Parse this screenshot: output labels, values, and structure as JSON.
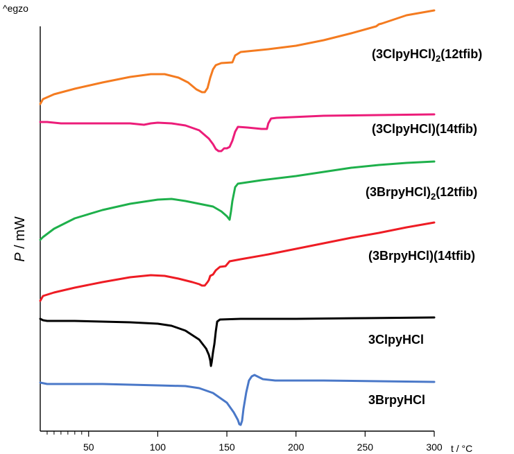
{
  "chart_data": {
    "type": "line",
    "top_note": "^egzo",
    "ylabel_italic": "P",
    "ylabel_rest": " / mW",
    "xlabel": "t / °C",
    "xlim": [
      15,
      300
    ],
    "xticks": [
      50,
      100,
      150,
      200,
      250,
      300
    ],
    "minor_xticks": [
      20,
      25,
      30,
      35,
      40,
      45
    ],
    "series": [
      {
        "name_parts": [
          "(3ClpyHCl)",
          "2",
          "(12tfib)"
        ],
        "color": "#f47b20",
        "points": [
          [
            15,
            150
          ],
          [
            17,
            143
          ],
          [
            25,
            136
          ],
          [
            40,
            128
          ],
          [
            60,
            119
          ],
          [
            80,
            111
          ],
          [
            95,
            107
          ],
          [
            105,
            107
          ],
          [
            115,
            112
          ],
          [
            122,
            119
          ],
          [
            128,
            129
          ],
          [
            132,
            133
          ],
          [
            134,
            133
          ],
          [
            136,
            127
          ],
          [
            138,
            112
          ],
          [
            140,
            100
          ],
          [
            142,
            94
          ],
          [
            146,
            91
          ],
          [
            154,
            90
          ],
          [
            156,
            80
          ],
          [
            160,
            75
          ],
          [
            180,
            71
          ],
          [
            200,
            66
          ],
          [
            220,
            58
          ],
          [
            240,
            48
          ],
          [
            258,
            38
          ],
          [
            260,
            35
          ],
          [
            262,
            34
          ],
          [
            280,
            22
          ],
          [
            300,
            15
          ]
        ]
      },
      {
        "name_parts": [
          "(3ClpyHCl)(14tfib)"
        ],
        "color": "#ec1c79",
        "points": [
          [
            15,
            176
          ],
          [
            20,
            176
          ],
          [
            30,
            178
          ],
          [
            50,
            178
          ],
          [
            80,
            178
          ],
          [
            90,
            180
          ],
          [
            95,
            178
          ],
          [
            100,
            177
          ],
          [
            110,
            178
          ],
          [
            120,
            181
          ],
          [
            130,
            188
          ],
          [
            137,
            200
          ],
          [
            140,
            208
          ],
          [
            142,
            215
          ],
          [
            144,
            218
          ],
          [
            146,
            218
          ],
          [
            148,
            214
          ],
          [
            150,
            214
          ],
          [
            152,
            212
          ],
          [
            154,
            203
          ],
          [
            156,
            190
          ],
          [
            158,
            183
          ],
          [
            165,
            184
          ],
          [
            175,
            186
          ],
          [
            179,
            186
          ],
          [
            180,
            178
          ],
          [
            182,
            171
          ],
          [
            186,
            170
          ],
          [
            220,
            167
          ],
          [
            260,
            166
          ],
          [
            300,
            165
          ]
        ]
      },
      {
        "name_parts": [
          "(3BrpyHCl)",
          "2",
          "(12tfib)"
        ],
        "color": "#1eb04b",
        "points": [
          [
            15,
            346
          ],
          [
            17,
            342
          ],
          [
            25,
            330
          ],
          [
            40,
            315
          ],
          [
            60,
            303
          ],
          [
            80,
            294
          ],
          [
            100,
            288
          ],
          [
            110,
            287
          ],
          [
            120,
            290
          ],
          [
            130,
            294
          ],
          [
            140,
            298
          ],
          [
            146,
            305
          ],
          [
            150,
            312
          ],
          [
            152,
            317
          ],
          [
            153,
            305
          ],
          [
            154,
            290
          ],
          [
            156,
            270
          ],
          [
            158,
            265
          ],
          [
            175,
            260
          ],
          [
            200,
            254
          ],
          [
            220,
            248
          ],
          [
            240,
            242
          ],
          [
            260,
            238
          ],
          [
            280,
            235
          ],
          [
            300,
            233
          ]
        ]
      },
      {
        "name_parts": [
          "(3BrpyHCl)(14tfib)"
        ],
        "color": "#ee1c24",
        "points": [
          [
            15,
            434
          ],
          [
            17,
            427
          ],
          [
            25,
            422
          ],
          [
            40,
            415
          ],
          [
            60,
            407
          ],
          [
            80,
            400
          ],
          [
            95,
            397
          ],
          [
            105,
            398
          ],
          [
            115,
            402
          ],
          [
            125,
            407
          ],
          [
            130,
            410
          ],
          [
            132,
            412
          ],
          [
            134,
            412
          ],
          [
            136,
            407
          ],
          [
            137,
            404
          ],
          [
            138,
            398
          ],
          [
            140,
            396
          ],
          [
            142,
            390
          ],
          [
            145,
            385
          ],
          [
            149,
            384
          ],
          [
            152,
            377
          ],
          [
            160,
            374
          ],
          [
            180,
            367
          ],
          [
            200,
            359
          ],
          [
            220,
            351
          ],
          [
            240,
            343
          ],
          [
            260,
            336
          ],
          [
            280,
            328
          ],
          [
            300,
            321
          ]
        ]
      },
      {
        "name_parts": [
          "3ClpyHCl"
        ],
        "color": "#000000",
        "points": [
          [
            15,
            460
          ],
          [
            17,
            462
          ],
          [
            20,
            463
          ],
          [
            40,
            463
          ],
          [
            60,
            464
          ],
          [
            80,
            465
          ],
          [
            100,
            467
          ],
          [
            110,
            470
          ],
          [
            120,
            477
          ],
          [
            130,
            490
          ],
          [
            135,
            503
          ],
          [
            137,
            512
          ],
          [
            138,
            520
          ],
          [
            138.5,
            528
          ],
          [
            139,
            523
          ],
          [
            140,
            508
          ],
          [
            141,
            496
          ],
          [
            142,
            478
          ],
          [
            143,
            464
          ],
          [
            145,
            461
          ],
          [
            160,
            460
          ],
          [
            200,
            460
          ],
          [
            250,
            459
          ],
          [
            300,
            458
          ]
        ]
      },
      {
        "name_parts": [
          "3BrpyHCl"
        ],
        "color": "#4a78c8",
        "points": [
          [
            15,
            552
          ],
          [
            20,
            554
          ],
          [
            40,
            554
          ],
          [
            60,
            554
          ],
          [
            80,
            555
          ],
          [
            100,
            556
          ],
          [
            120,
            557
          ],
          [
            130,
            560
          ],
          [
            140,
            567
          ],
          [
            150,
            581
          ],
          [
            155,
            595
          ],
          [
            158,
            606
          ],
          [
            159,
            612
          ],
          [
            160,
            613
          ],
          [
            161,
            607
          ],
          [
            162,
            590
          ],
          [
            164,
            566
          ],
          [
            166,
            549
          ],
          [
            168,
            543
          ],
          [
            170,
            541
          ],
          [
            172,
            543
          ],
          [
            176,
            547
          ],
          [
            185,
            549
          ],
          [
            220,
            549
          ],
          [
            260,
            550
          ],
          [
            300,
            551
          ]
        ]
      }
    ]
  }
}
